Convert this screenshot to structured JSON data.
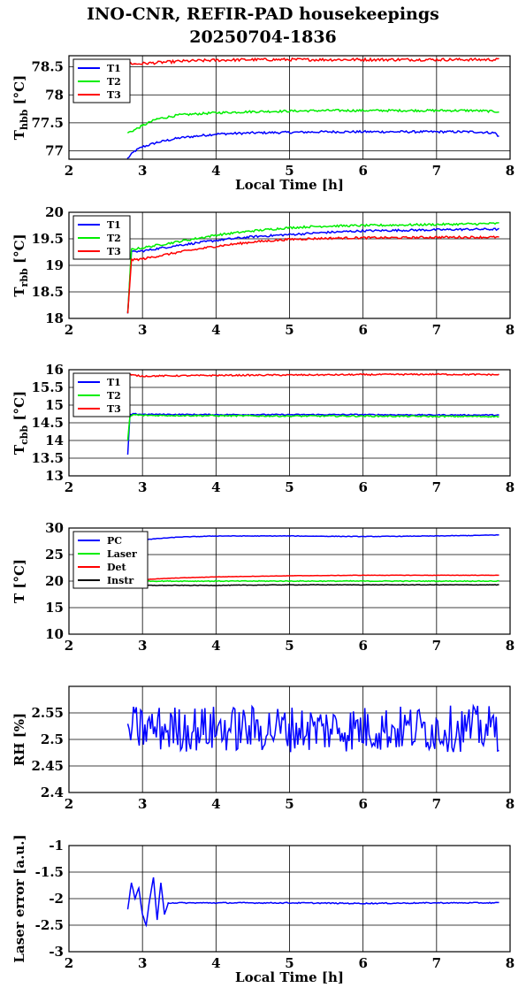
{
  "figure": {
    "title_line1": "INO-CNR, REFIR-PAD housekeepings",
    "title_line2": "20250704-1836"
  },
  "chart_data": [
    {
      "type": "line",
      "xlabel": "Local Time [h]",
      "ylabel": "T",
      "ylabel_sub": "hbb",
      "ylabel_unit": " [°C]",
      "xlim": [
        2,
        8
      ],
      "ylim": [
        76.85,
        78.7
      ],
      "xticks": [
        2,
        3,
        4,
        5,
        6,
        7,
        8
      ],
      "yticks": [
        77,
        77.5,
        78,
        78.5
      ],
      "grid": true,
      "legend": "top-left",
      "series": [
        {
          "name": "T1",
          "color": "#0000ff",
          "x": [
            2.8,
            2.9,
            3.0,
            3.2,
            3.5,
            4.0,
            4.5,
            5.0,
            5.5,
            6.0,
            6.5,
            7.0,
            7.5,
            7.8,
            7.85
          ],
          "y": [
            76.87,
            77.0,
            77.07,
            77.15,
            77.23,
            77.3,
            77.32,
            77.33,
            77.34,
            77.34,
            77.34,
            77.34,
            77.34,
            77.32,
            77.25
          ],
          "noise": 0.02
        },
        {
          "name": "T2",
          "color": "#00ee00",
          "x": [
            2.8,
            2.9,
            3.0,
            3.2,
            3.5,
            4.0,
            4.5,
            5.0,
            5.5,
            6.0,
            6.5,
            7.0,
            7.5,
            7.85
          ],
          "y": [
            77.32,
            77.38,
            77.45,
            77.57,
            77.64,
            77.68,
            77.7,
            77.71,
            77.72,
            77.72,
            77.72,
            77.72,
            77.72,
            77.7
          ],
          "noise": 0.02
        },
        {
          "name": "T3",
          "color": "#ff0000",
          "x": [
            2.8,
            2.9,
            3.0,
            3.5,
            4.0,
            4.5,
            5.0,
            5.5,
            6.0,
            6.5,
            7.0,
            7.5,
            7.85
          ],
          "y": [
            78.58,
            78.55,
            78.56,
            78.6,
            78.62,
            78.63,
            78.63,
            78.63,
            78.63,
            78.63,
            78.63,
            78.63,
            78.63
          ],
          "noise": 0.025
        }
      ]
    },
    {
      "type": "line",
      "xlabel": "",
      "ylabel": "T",
      "ylabel_sub": "rbb",
      "ylabel_unit": " [°C]",
      "xlim": [
        2,
        8
      ],
      "ylim": [
        18,
        20
      ],
      "xticks": [
        2,
        3,
        4,
        5,
        6,
        7,
        8
      ],
      "yticks": [
        18,
        18.5,
        19,
        19.5,
        20
      ],
      "grid": true,
      "legend": "top-left",
      "series": [
        {
          "name": "T1",
          "color": "#0000ff",
          "x": [
            2.8,
            2.85,
            3.0,
            3.5,
            4.0,
            4.5,
            5.0,
            5.5,
            6.0,
            6.5,
            7.0,
            7.5,
            7.85
          ],
          "y": [
            18.1,
            19.25,
            19.27,
            19.38,
            19.47,
            19.54,
            19.58,
            19.62,
            19.65,
            19.66,
            19.67,
            19.68,
            19.68
          ],
          "noise": 0.02
        },
        {
          "name": "T2",
          "color": "#00ee00",
          "x": [
            2.8,
            2.85,
            3.0,
            3.5,
            4.0,
            4.5,
            5.0,
            5.5,
            6.0,
            6.5,
            7.0,
            7.5,
            7.85
          ],
          "y": [
            18.1,
            19.3,
            19.33,
            19.45,
            19.57,
            19.65,
            19.71,
            19.74,
            19.75,
            19.76,
            19.77,
            19.78,
            19.79
          ],
          "noise": 0.02
        },
        {
          "name": "T3",
          "color": "#ff0000",
          "x": [
            2.8,
            2.85,
            3.0,
            3.5,
            4.0,
            4.5,
            5.0,
            5.5,
            6.0,
            6.5,
            7.0,
            7.5,
            7.85
          ],
          "y": [
            18.1,
            19.1,
            19.12,
            19.25,
            19.36,
            19.44,
            19.49,
            19.51,
            19.52,
            19.52,
            19.53,
            19.53,
            19.53
          ],
          "noise": 0.02
        }
      ]
    },
    {
      "type": "line",
      "xlabel": "",
      "ylabel": "T",
      "ylabel_sub": "cbb",
      "ylabel_unit": " [°C]",
      "xlim": [
        2,
        8
      ],
      "ylim": [
        13,
        16
      ],
      "xticks": [
        2,
        3,
        4,
        5,
        6,
        7,
        8
      ],
      "yticks": [
        13,
        13.5,
        14,
        14.5,
        15,
        15.5,
        16
      ],
      "grid": true,
      "legend": "top-left",
      "series": [
        {
          "name": "T1",
          "color": "#0000ff",
          "x": [
            2.8,
            2.83,
            2.88,
            3.0,
            4.0,
            5.0,
            6.0,
            7.0,
            7.85
          ],
          "y": [
            13.6,
            14.72,
            14.75,
            14.74,
            14.73,
            14.73,
            14.73,
            14.72,
            14.72
          ],
          "noise": 0.015
        },
        {
          "name": "T2",
          "color": "#00ee00",
          "x": [
            2.8,
            2.83,
            2.88,
            3.0,
            4.0,
            5.0,
            6.0,
            7.0,
            7.85
          ],
          "y": [
            14.0,
            14.68,
            14.73,
            14.71,
            14.7,
            14.69,
            14.69,
            14.68,
            14.68
          ],
          "noise": 0.02
        },
        {
          "name": "T3",
          "color": "#ff0000",
          "x": [
            2.8,
            2.85,
            3.0,
            4.0,
            5.0,
            6.0,
            7.0,
            7.85
          ],
          "y": [
            15.88,
            15.85,
            15.82,
            15.84,
            15.85,
            15.86,
            15.87,
            15.86
          ],
          "noise": 0.02
        }
      ]
    },
    {
      "type": "line",
      "xlabel": "",
      "ylabel": "T [°C]",
      "ylabel_sub": "",
      "ylabel_unit": "",
      "xlim": [
        2,
        8
      ],
      "ylim": [
        10,
        30
      ],
      "xticks": [
        2,
        3,
        4,
        5,
        6,
        7,
        8
      ],
      "yticks": [
        10,
        15,
        20,
        25,
        30
      ],
      "grid": true,
      "legend": "top-left",
      "series": [
        {
          "name": "PC",
          "color": "#0000ff",
          "x": [
            2.8,
            3.0,
            3.5,
            4.0,
            5.0,
            6.0,
            7.0,
            7.5,
            7.85
          ],
          "y": [
            27.4,
            27.8,
            28.3,
            28.5,
            28.5,
            28.4,
            28.5,
            28.6,
            28.7
          ],
          "noise": 0.05
        },
        {
          "name": "Laser",
          "color": "#00ee00",
          "x": [
            2.8,
            3.0,
            4.0,
            5.0,
            6.0,
            7.0,
            7.85
          ],
          "y": [
            20.0,
            20.0,
            20.0,
            20.0,
            20.0,
            20.0,
            20.0
          ],
          "noise": 0.08
        },
        {
          "name": "Det",
          "color": "#ff0000",
          "x": [
            2.8,
            3.0,
            3.5,
            4.0,
            5.0,
            6.0,
            7.0,
            7.85
          ],
          "y": [
            20.1,
            20.3,
            20.6,
            20.8,
            21.0,
            21.1,
            21.1,
            21.1
          ],
          "noise": 0.03
        },
        {
          "name": "Instr",
          "color": "#000000",
          "x": [
            2.8,
            3.0,
            4.0,
            5.0,
            6.0,
            7.0,
            7.85
          ],
          "y": [
            19.2,
            19.2,
            19.2,
            19.3,
            19.3,
            19.3,
            19.3
          ],
          "noise": 0.05
        }
      ]
    },
    {
      "type": "line",
      "xlabel": "",
      "ylabel": "RH [%]",
      "ylabel_sub": "",
      "ylabel_unit": "",
      "xlim": [
        2,
        8
      ],
      "ylim": [
        2.4,
        2.6
      ],
      "xticks": [
        2,
        3,
        4,
        5,
        6,
        7,
        8
      ],
      "yticks": [
        2.4,
        2.45,
        2.5,
        2.55
      ],
      "grid": true,
      "legend": "none",
      "series": [
        {
          "name": "",
          "color": "#0000ff",
          "x": [
            2.8,
            7.85
          ],
          "y": [
            2.52,
            2.52
          ],
          "noise": 0.055,
          "jagged": true
        }
      ]
    },
    {
      "type": "line",
      "xlabel": "Local Time [h]",
      "ylabel": "Laser error [a.u.]",
      "ylabel_sub": "",
      "ylabel_unit": "",
      "xlim": [
        2,
        8
      ],
      "ylim": [
        -3,
        -1
      ],
      "xticks": [
        2,
        3,
        4,
        5,
        6,
        7,
        8
      ],
      "yticks": [
        -3,
        -2.5,
        -2,
        -1.5,
        -1
      ],
      "grid": true,
      "legend": "none",
      "series": [
        {
          "name": "",
          "color": "#0000ff",
          "x": [
            2.8,
            2.85,
            2.9,
            2.95,
            3.0,
            3.05,
            3.1,
            3.15,
            3.2,
            3.25,
            3.3,
            3.35,
            4.0,
            5.0,
            6.0,
            7.0,
            7.85
          ],
          "y": [
            -2.2,
            -1.7,
            -2.0,
            -1.8,
            -2.3,
            -2.5,
            -2.0,
            -1.6,
            -2.4,
            -1.7,
            -2.3,
            -2.08,
            -2.08,
            -2.08,
            -2.09,
            -2.08,
            -2.08
          ],
          "noise": 0.01
        }
      ]
    }
  ]
}
